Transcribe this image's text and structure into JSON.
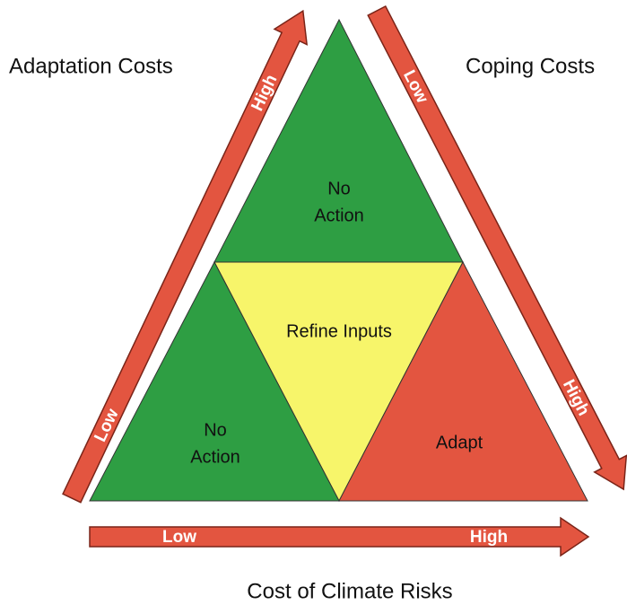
{
  "labels": {
    "adaptation": "Adaptation Costs",
    "coping": "Coping Costs",
    "climate": "Cost of Climate Risks"
  },
  "arrows": [
    {
      "low": "Low",
      "high": "High"
    },
    {
      "low": "Low",
      "high": "High"
    },
    {
      "low": "Low",
      "high": "High"
    }
  ],
  "regions": [
    {
      "lines": [
        "No",
        "Action"
      ]
    },
    {
      "lines": [
        "Refine Inputs"
      ]
    },
    {
      "lines": [
        "No",
        "Action"
      ]
    },
    {
      "lines": [
        "Adapt"
      ]
    }
  ]
}
